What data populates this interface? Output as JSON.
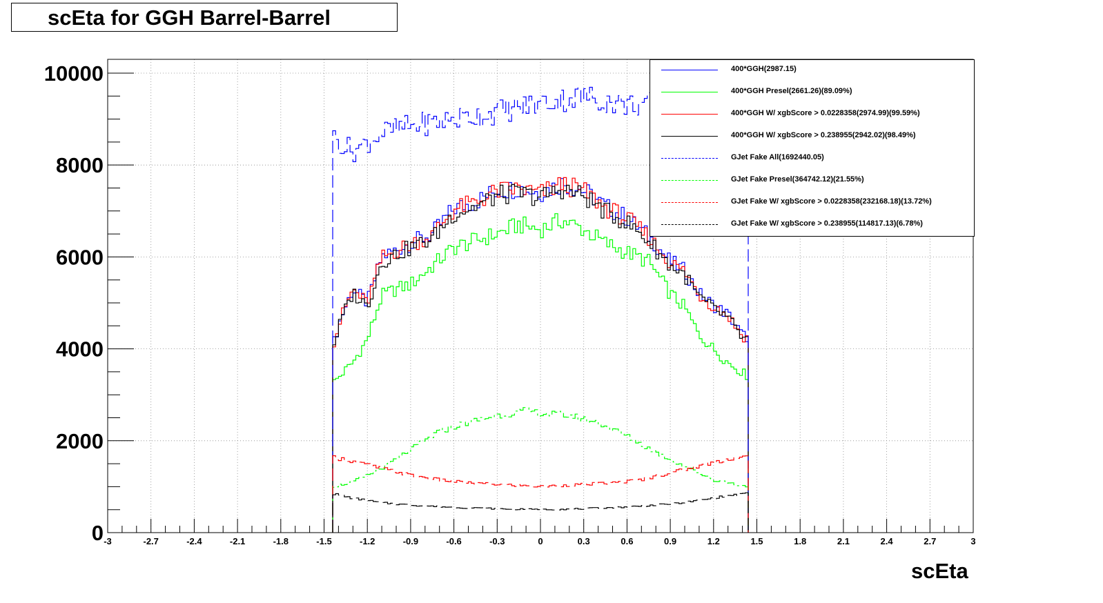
{
  "chart_data": {
    "type": "histogram-step",
    "title": "scEta for GGH Barrel-Barrel",
    "xlabel": "scEta",
    "ylabel": "",
    "xlim": [
      -3,
      3
    ],
    "ylim": [
      0,
      10300
    ],
    "x_ticks": [
      "-3",
      "-2.7",
      "-2.4",
      "-2.1",
      "-1.8",
      "-1.5",
      "-1.2",
      "-0.9",
      "-0.6",
      "-0.3",
      "0",
      "0.3",
      "0.6",
      "0.9",
      "1.2",
      "1.5",
      "1.8",
      "2.1",
      "2.4",
      "2.7",
      "3"
    ],
    "y_ticks": [
      "0",
      "2000",
      "4000",
      "6000",
      "8000",
      "10000"
    ],
    "grid": true,
    "legend_position": "top-right",
    "bin_range": [
      -1.44,
      1.44
    ],
    "series": [
      {
        "name": "400*GGH(2987.15)",
        "color": "#0000ff",
        "dash": "solid",
        "anchors": [
          [
            -1.44,
            4050
          ],
          [
            -1.38,
            4700
          ],
          [
            -1.3,
            5300
          ],
          [
            -1.2,
            5000
          ],
          [
            -1.1,
            6000
          ],
          [
            -1.0,
            6150
          ],
          [
            -0.9,
            6300
          ],
          [
            -0.75,
            6500
          ],
          [
            -0.6,
            7050
          ],
          [
            -0.45,
            7200
          ],
          [
            -0.3,
            7450
          ],
          [
            -0.15,
            7500
          ],
          [
            0.0,
            7400
          ],
          [
            0.15,
            7600
          ],
          [
            0.3,
            7450
          ],
          [
            0.45,
            7100
          ],
          [
            0.6,
            6850
          ],
          [
            0.75,
            6450
          ],
          [
            0.9,
            5900
          ],
          [
            1.0,
            5700
          ],
          [
            1.1,
            5200
          ],
          [
            1.2,
            4950
          ],
          [
            1.3,
            4750
          ],
          [
            1.4,
            4300
          ],
          [
            1.44,
            4250
          ]
        ]
      },
      {
        "name": "400*GGH Presel(2661.26)(89.09%)",
        "color": "#00ff00",
        "dash": "solid",
        "anchors": [
          [
            -1.44,
            3250
          ],
          [
            -1.3,
            3700
          ],
          [
            -1.2,
            4200
          ],
          [
            -1.1,
            5150
          ],
          [
            -1.0,
            5300
          ],
          [
            -0.9,
            5400
          ],
          [
            -0.75,
            5800
          ],
          [
            -0.6,
            6200
          ],
          [
            -0.45,
            6350
          ],
          [
            -0.3,
            6500
          ],
          [
            -0.15,
            6700
          ],
          [
            0.0,
            6600
          ],
          [
            0.15,
            6800
          ],
          [
            0.3,
            6600
          ],
          [
            0.45,
            6300
          ],
          [
            0.6,
            6100
          ],
          [
            0.75,
            5900
          ],
          [
            0.9,
            5200
          ],
          [
            1.0,
            4900
          ],
          [
            1.1,
            4300
          ],
          [
            1.2,
            4000
          ],
          [
            1.3,
            3700
          ],
          [
            1.44,
            3400
          ]
        ]
      },
      {
        "name": "400*GGH W/ xgbScore > 0.0228358(2974.99)(99.59%)",
        "color": "#ff0000",
        "dash": "solid",
        "anchors": [
          [
            -1.44,
            4040
          ],
          [
            -1.38,
            4690
          ],
          [
            -1.3,
            5290
          ],
          [
            -1.2,
            4990
          ],
          [
            -1.1,
            5980
          ],
          [
            -1.0,
            6130
          ],
          [
            -0.9,
            6280
          ],
          [
            -0.75,
            6480
          ],
          [
            -0.6,
            7030
          ],
          [
            -0.45,
            7180
          ],
          [
            -0.3,
            7430
          ],
          [
            -0.15,
            7480
          ],
          [
            0.0,
            7380
          ],
          [
            0.15,
            7580
          ],
          [
            0.3,
            7430
          ],
          [
            0.45,
            7080
          ],
          [
            0.6,
            6830
          ],
          [
            0.75,
            6430
          ],
          [
            0.9,
            5880
          ],
          [
            1.0,
            5680
          ],
          [
            1.1,
            5180
          ],
          [
            1.2,
            4930
          ],
          [
            1.3,
            4730
          ],
          [
            1.4,
            4280
          ],
          [
            1.44,
            4230
          ]
        ]
      },
      {
        "name": "400*GGH W/ xgbScore > 0.238955(2942.02)(98.49%)",
        "color": "#000000",
        "dash": "solid",
        "anchors": [
          [
            -1.44,
            4000
          ],
          [
            -1.38,
            4640
          ],
          [
            -1.3,
            5220
          ],
          [
            -1.2,
            4930
          ],
          [
            -1.1,
            5900
          ],
          [
            -1.0,
            6060
          ],
          [
            -0.9,
            6200
          ],
          [
            -0.75,
            6400
          ],
          [
            -0.6,
            6950
          ],
          [
            -0.45,
            7090
          ],
          [
            -0.3,
            7330
          ],
          [
            -0.15,
            7390
          ],
          [
            0.0,
            7290
          ],
          [
            0.15,
            7480
          ],
          [
            0.3,
            7330
          ],
          [
            0.45,
            6990
          ],
          [
            0.6,
            6750
          ],
          [
            0.75,
            6350
          ],
          [
            0.9,
            5810
          ],
          [
            1.0,
            5610
          ],
          [
            1.1,
            5120
          ],
          [
            1.2,
            4870
          ],
          [
            1.3,
            4670
          ],
          [
            1.4,
            4230
          ],
          [
            1.44,
            4180
          ]
        ]
      },
      {
        "name": "GJet Fake All(1692440.05)",
        "color": "#0000ff",
        "dash": "long",
        "anchors": [
          [
            -1.44,
            8600
          ],
          [
            -1.3,
            8300
          ],
          [
            -1.1,
            8700
          ],
          [
            -0.9,
            8850
          ],
          [
            -0.6,
            9000
          ],
          [
            -0.3,
            9150
          ],
          [
            0.0,
            9350
          ],
          [
            0.3,
            9500
          ],
          [
            0.45,
            9400
          ],
          [
            0.6,
            9300
          ],
          [
            0.75,
            9350
          ],
          [
            1.44,
            9300
          ]
        ]
      },
      {
        "name": "GJet Fake Presel(364742.12)(21.55%)",
        "color": "#00ff00",
        "dash": "mixed",
        "anchors": [
          [
            -1.44,
            1000
          ],
          [
            -1.3,
            1100
          ],
          [
            -1.1,
            1400
          ],
          [
            -0.9,
            1800
          ],
          [
            -0.7,
            2200
          ],
          [
            -0.5,
            2400
          ],
          [
            -0.3,
            2550
          ],
          [
            -0.1,
            2650
          ],
          [
            0.0,
            2600
          ],
          [
            0.2,
            2550
          ],
          [
            0.4,
            2400
          ],
          [
            0.6,
            2100
          ],
          [
            0.8,
            1750
          ],
          [
            1.0,
            1450
          ],
          [
            1.2,
            1150
          ],
          [
            1.44,
            1000
          ]
        ]
      },
      {
        "name": "GJet Fake W/ xgbScore > 0.0228358(232168.18)(13.72%)",
        "color": "#ff0000",
        "dash": "long",
        "anchors": [
          [
            -1.44,
            1650
          ],
          [
            -1.3,
            1550
          ],
          [
            -1.1,
            1400
          ],
          [
            -0.9,
            1250
          ],
          [
            -0.7,
            1150
          ],
          [
            -0.5,
            1080
          ],
          [
            -0.3,
            1050
          ],
          [
            0.0,
            1000
          ],
          [
            0.3,
            1050
          ],
          [
            0.5,
            1080
          ],
          [
            0.7,
            1150
          ],
          [
            0.9,
            1300
          ],
          [
            1.1,
            1450
          ],
          [
            1.3,
            1600
          ],
          [
            1.44,
            1650
          ]
        ]
      },
      {
        "name": "GJet Fake W/ xgbScore > 0.238955(114817.13)(6.78%)",
        "color": "#000000",
        "dash": "long",
        "anchors": [
          [
            -1.44,
            850
          ],
          [
            -1.3,
            750
          ],
          [
            -1.1,
            650
          ],
          [
            -0.9,
            600
          ],
          [
            -0.6,
            550
          ],
          [
            -0.3,
            520
          ],
          [
            0.0,
            500
          ],
          [
            0.3,
            520
          ],
          [
            0.6,
            560
          ],
          [
            0.9,
            620
          ],
          [
            1.1,
            700
          ],
          [
            1.3,
            800
          ],
          [
            1.44,
            850
          ]
        ]
      }
    ]
  }
}
